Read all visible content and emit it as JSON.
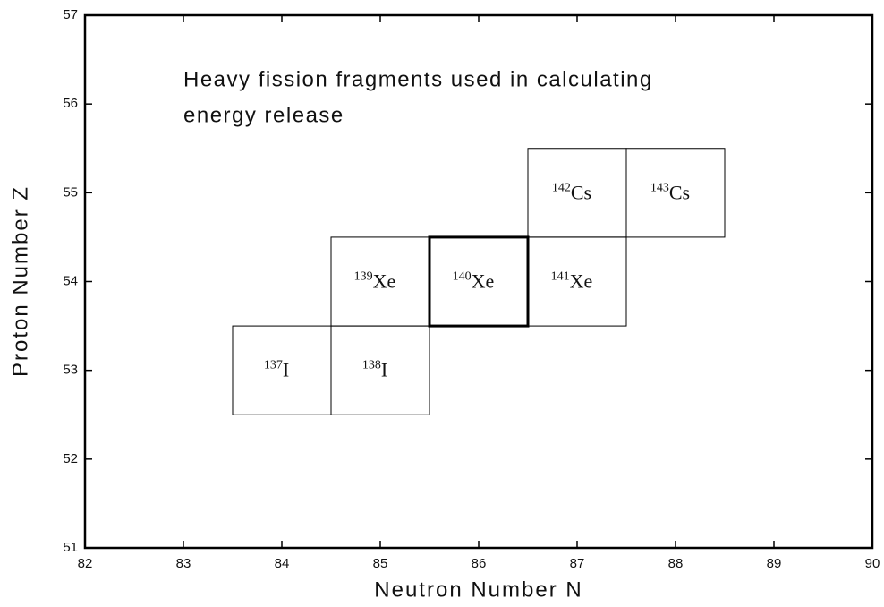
{
  "chart_data": {
    "type": "nuclide",
    "annotation": [
      "Heavy fission fragments used in calculating",
      "energy release"
    ],
    "xlabel": "Neutron Number N",
    "ylabel": "Proton Number Z",
    "xlim": [
      82,
      90
    ],
    "xticks": [
      82,
      83,
      84,
      85,
      86,
      87,
      88,
      89,
      90
    ],
    "ylim": [
      51,
      57
    ],
    "yticks": [
      51,
      52,
      53,
      54,
      55,
      56,
      57
    ],
    "cells": [
      {
        "n": 84,
        "z": 53,
        "mass": 137,
        "symbol": "I"
      },
      {
        "n": 85,
        "z": 53,
        "mass": 138,
        "symbol": "I"
      },
      {
        "n": 85,
        "z": 54,
        "mass": 139,
        "symbol": "Xe"
      },
      {
        "n": 86,
        "z": 54,
        "mass": 140,
        "symbol": "Xe",
        "highlight": true
      },
      {
        "n": 87,
        "z": 54,
        "mass": 141,
        "symbol": "Xe"
      },
      {
        "n": 87,
        "z": 55,
        "mass": 142,
        "symbol": "Cs"
      },
      {
        "n": 88,
        "z": 55,
        "mass": 143,
        "symbol": "Cs"
      }
    ],
    "color": "#000000"
  }
}
